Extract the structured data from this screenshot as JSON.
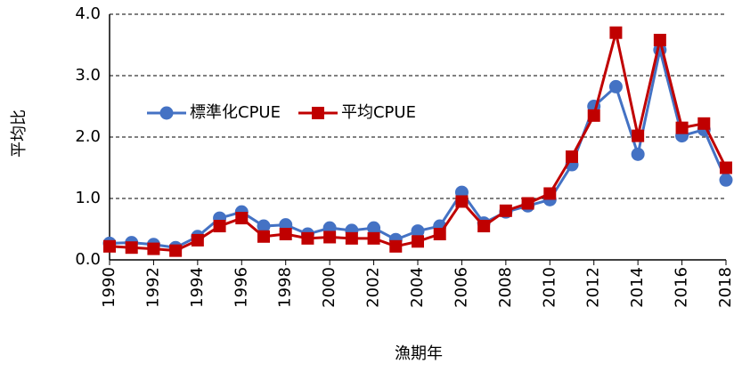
{
  "chart_data": {
    "type": "line",
    "x_label": "漁期年",
    "y_label": "平均比",
    "x": [
      1990,
      1991,
      1992,
      1993,
      1994,
      1995,
      1996,
      1997,
      1998,
      1999,
      2000,
      2001,
      2002,
      2003,
      2004,
      2005,
      2006,
      2007,
      2008,
      2009,
      2010,
      2011,
      2012,
      2013,
      2014,
      2015,
      2016,
      2017,
      2018
    ],
    "series": [
      {
        "name": "標準化CPUE",
        "color": "#4472c4",
        "marker": "circle",
        "values": [
          0.27,
          0.28,
          0.25,
          0.2,
          0.38,
          0.68,
          0.78,
          0.55,
          0.57,
          0.42,
          0.52,
          0.48,
          0.52,
          0.33,
          0.47,
          0.55,
          1.1,
          0.6,
          0.78,
          0.88,
          0.98,
          1.55,
          2.5,
          2.82,
          1.72,
          3.42,
          2.02,
          2.12,
          1.3
        ]
      },
      {
        "name": "平均CPUE",
        "color": "#c00000",
        "marker": "square",
        "values": [
          0.22,
          0.2,
          0.18,
          0.15,
          0.32,
          0.55,
          0.68,
          0.38,
          0.42,
          0.35,
          0.37,
          0.35,
          0.35,
          0.22,
          0.3,
          0.42,
          0.95,
          0.55,
          0.8,
          0.92,
          1.08,
          1.68,
          2.35,
          3.7,
          2.02,
          3.58,
          2.15,
          2.22,
          1.5
        ]
      }
    ],
    "xlim": [
      1990,
      2018
    ],
    "xticks": [
      1990,
      1992,
      1994,
      1996,
      1998,
      2000,
      2002,
      2004,
      2006,
      2008,
      2010,
      2012,
      2014,
      2016,
      2018
    ],
    "ylim": [
      0,
      4
    ],
    "yticks": [
      {
        "value": 0,
        "label": "0.0"
      },
      {
        "value": 1,
        "label": "1.0"
      },
      {
        "value": 2,
        "label": "2.0"
      },
      {
        "value": 3,
        "label": "3.0"
      },
      {
        "value": 4,
        "label": "4.0"
      }
    ],
    "grid": true,
    "legend": "center left"
  }
}
